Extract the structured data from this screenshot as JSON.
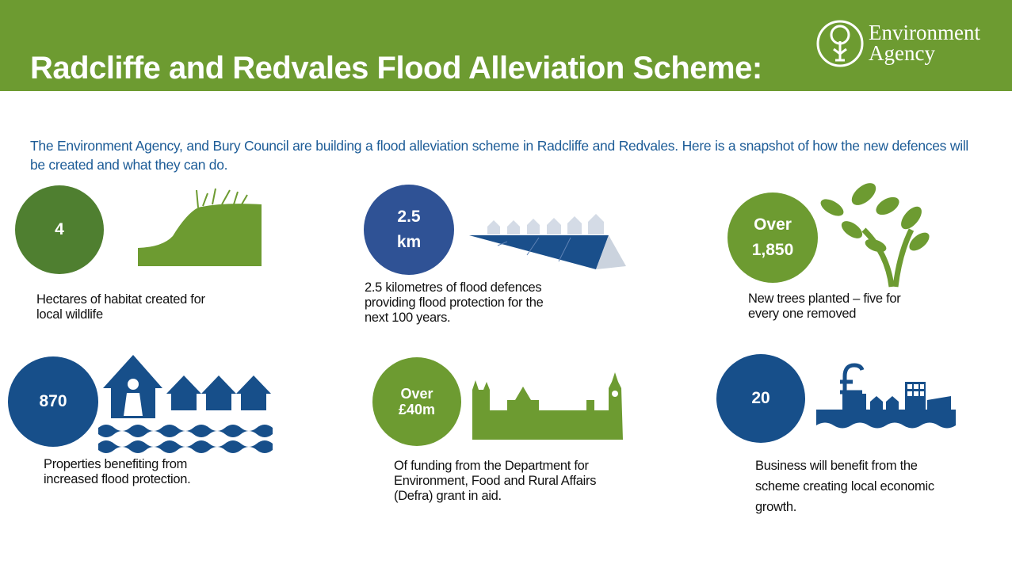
{
  "header": {
    "title": "Radcliffe and Redvales Flood Alleviation Scheme:",
    "logo": [
      "Environment",
      "Agency"
    ]
  },
  "intro": "The Environment Agency, and Bury Council are building a flood alleviation scheme in Radcliffe and Redvales. Here is a snapshot of how the new defences will be created and what they can do.",
  "stats": [
    {
      "value": [
        "4"
      ],
      "description": [
        "Hectares of habitat created for",
        "local wildlife"
      ]
    },
    {
      "value": [
        "2.5",
        "km"
      ],
      "description": [
        "2.5 kilometres of flood defences",
        "providing flood protection for the",
        "next 100 years."
      ]
    },
    {
      "value": [
        "Over",
        "1,850"
      ],
      "description": [
        "New trees planted – five for",
        "every one removed"
      ]
    },
    {
      "value": [
        "870"
      ],
      "description": [
        "Properties benefiting from",
        "increased flood protection."
      ]
    },
    {
      "value": [
        "Over",
        "£40m"
      ],
      "description": [
        "Of funding from the Department for",
        "Environment, Food and Rural Affairs",
        "(Defra) grant in aid."
      ]
    },
    {
      "value": [
        "20"
      ],
      "description": [
        "Business will benefit from the",
        "scheme creating local economic",
        "growth."
      ]
    }
  ]
}
